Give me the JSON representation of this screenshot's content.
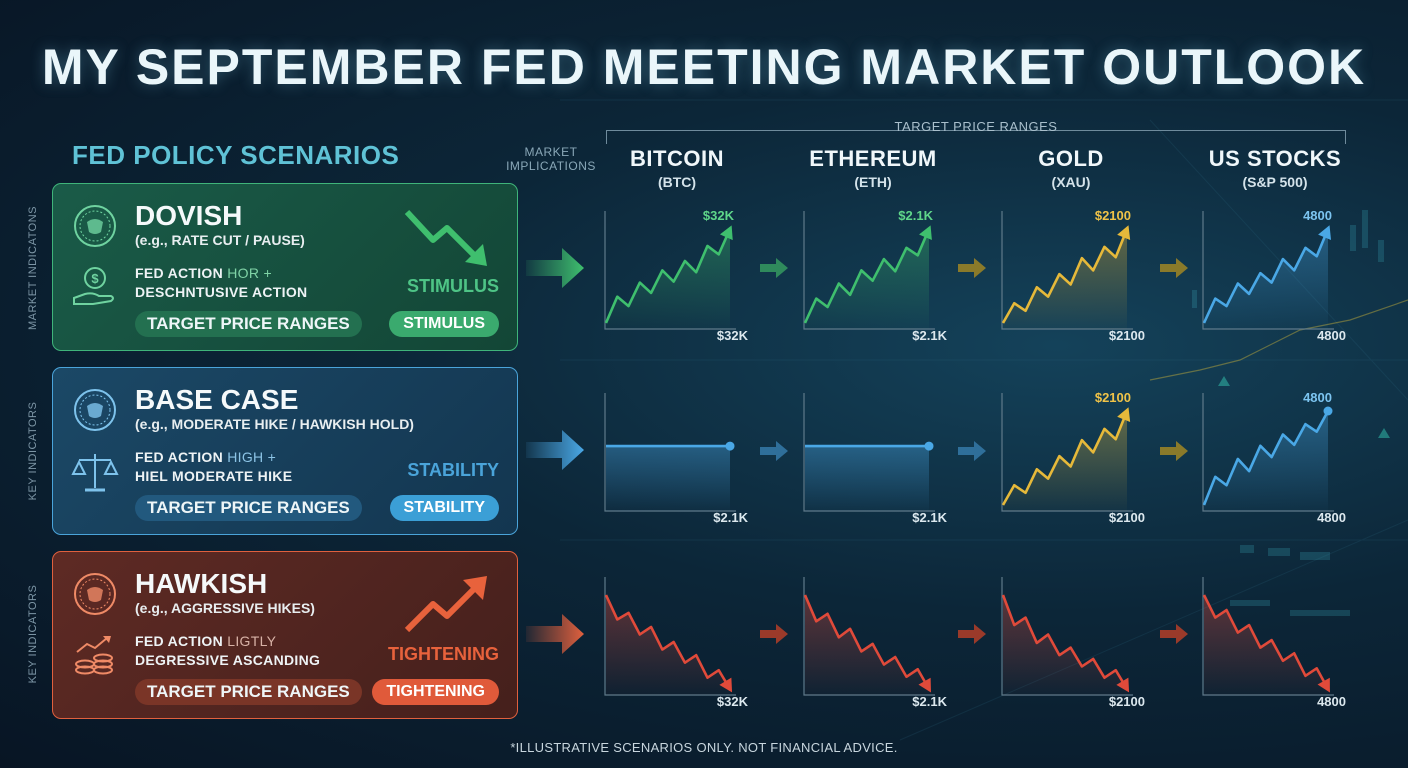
{
  "title": "MY SEPTEMBER FED MEETING MARKET OUTLOOK",
  "left_heading": "FED POLICY SCENARIOS",
  "market_implications": "MARKET IMPLICATIONS",
  "target_price_ranges_header": "TARGET PRICE RANGES",
  "assets": [
    {
      "name": "BITCOIN",
      "ticker": "(BTC)"
    },
    {
      "name": "ETHEREUM",
      "ticker": "(ETH)"
    },
    {
      "name": "GOLD",
      "ticker": "(XAU)"
    },
    {
      "name": "US STOCKS",
      "ticker": "(S&P 500)"
    }
  ],
  "side_labels": [
    "MARKET INDICATONS",
    "KEY INDICATORS",
    "KEY INDICATORS"
  ],
  "scenarios": [
    {
      "title": "DOVISH",
      "subtitle": "(e.g., RATE CUT / PAUSE)",
      "action_line1_bold": "FED ACTION",
      "action_line1_dim": "HOR +",
      "action_line2": "DESCHNTUSIVE ACTION",
      "pill": "TARGET PRICE RANGES",
      "mood": "STIMULUS",
      "badge": "STIMULUS",
      "color": "#3fb47a",
      "icons": [
        "fed-seal-icon",
        "hand-dollar-coin-icon",
        "trend-down-arrow-icon"
      ]
    },
    {
      "title": "BASE CASE",
      "subtitle": "(e.g., MODERATE HIKE / HAWKISH HOLD)",
      "action_line1_bold": "FED ACTION",
      "action_line1_dim": "HIGH +",
      "action_line2": "HIEL MODERATE HIKE",
      "pill": "TARGET PRICE RANGES",
      "mood": "STABILITY",
      "badge": "STABILITY",
      "color": "#4aa4da",
      "icons": [
        "fed-seal-icon",
        "balance-scale-icon",
        "flat-line-icon"
      ]
    },
    {
      "title": "HAWKISH",
      "subtitle": "(e.g., AGGRESSIVE HIKES)",
      "action_line1_bold": "FED ACTION",
      "action_line1_dim": "LIGTLY",
      "action_line2": "DEGRESSIVE ASCANDING",
      "pill": "TARGET PRICE RANGES",
      "mood": "TIGHTENING",
      "badge": "TIGHTENING",
      "color": "#e0603e",
      "icons": [
        "fed-seal-icon",
        "coin-stack-growth-icon",
        "trend-up-arrow-icon"
      ]
    }
  ],
  "chart_data": [
    {
      "type": "line",
      "title": "BITCOIN dovish",
      "trend": "up",
      "color": "#3fbf6e",
      "top_label": "$32K",
      "bottom_label": "$32K",
      "values": [
        0,
        2.8,
        1.8,
        4.3,
        3.2,
        5.6,
        4.4,
        6.6,
        5.4,
        8.2,
        7.3,
        10
      ]
    },
    {
      "type": "line",
      "title": "ETHEREUM dovish",
      "trend": "up",
      "color": "#3fbf6e",
      "top_label": "$2.1K",
      "bottom_label": "$2.1K",
      "values": [
        0,
        2.6,
        1.7,
        4.2,
        3.0,
        5.6,
        4.5,
        6.8,
        5.5,
        8.0,
        7.2,
        10
      ]
    },
    {
      "type": "line",
      "title": "GOLD dovish",
      "trend": "up",
      "color": "#e6b93a",
      "top_label": "$2100",
      "bottom_label": "$2100",
      "values": [
        0,
        2.1,
        1.3,
        3.8,
        2.8,
        5.2,
        4.1,
        6.9,
        5.6,
        8.1,
        7.0,
        10
      ]
    },
    {
      "type": "line",
      "title": "US STOCKS dovish",
      "trend": "up",
      "color": "#4aa8e6",
      "top_label": "4800",
      "bottom_label": "4800",
      "values": [
        0,
        2.6,
        1.8,
        4.2,
        3.1,
        5.3,
        4.3,
        6.8,
        5.6,
        8.0,
        7.1,
        10
      ]
    },
    {
      "type": "line",
      "title": "BITCOIN base",
      "trend": "flat",
      "color": "#4aa8e6",
      "top_label": "",
      "bottom_label": "$2.1K",
      "values": [
        5,
        5
      ]
    },
    {
      "type": "line",
      "title": "ETHEREUM base",
      "trend": "flat",
      "color": "#4aa8e6",
      "top_label": "",
      "bottom_label": "$2.1K",
      "values": [
        5,
        5
      ]
    },
    {
      "type": "line",
      "title": "GOLD base",
      "trend": "up",
      "color": "#e6b93a",
      "top_label": "$2100",
      "bottom_label": "$2100",
      "values": [
        0,
        2.1,
        1.3,
        3.8,
        2.8,
        5.2,
        4.1,
        6.9,
        5.6,
        8.1,
        7.0,
        10
      ]
    },
    {
      "type": "line",
      "title": "US STOCKS base",
      "trend": "up",
      "color": "#4aa8e6",
      "top_label": "4800",
      "bottom_label": "4800",
      "values": [
        0,
        3.0,
        2.1,
        4.9,
        3.6,
        6.3,
        5.1,
        7.5,
        6.4,
        8.6,
        7.8,
        10
      ]
    },
    {
      "type": "line",
      "title": "BITCOIN hawkish",
      "trend": "down",
      "color": "#e04a3a",
      "top_label": "",
      "bottom_label": "$32K",
      "values": [
        10,
        7.4,
        8.1,
        5.8,
        6.6,
        4.2,
        5.0,
        2.8,
        3.6,
        1.2,
        2.0,
        0
      ]
    },
    {
      "type": "line",
      "title": "ETHEREUM hawkish",
      "trend": "down",
      "color": "#e04a3a",
      "top_label": "",
      "bottom_label": "$2.1K",
      "values": [
        10,
        7.2,
        8.0,
        5.5,
        6.4,
        4.0,
        4.8,
        2.6,
        3.4,
        1.3,
        2.1,
        0
      ]
    },
    {
      "type": "line",
      "title": "GOLD hawkish",
      "trend": "down",
      "color": "#e04a3a",
      "top_label": "",
      "bottom_label": "$2100",
      "values": [
        10,
        6.8,
        7.6,
        4.9,
        5.8,
        3.6,
        4.4,
        2.4,
        3.2,
        1.2,
        2.0,
        0
      ]
    },
    {
      "type": "line",
      "title": "US STOCKS hawkish",
      "trend": "down",
      "color": "#e04a3a",
      "top_label": "",
      "bottom_label": "4800",
      "values": [
        10,
        7.6,
        8.4,
        6.0,
        6.8,
        4.4,
        5.2,
        3.0,
        3.8,
        1.4,
        2.2,
        0
      ]
    }
  ],
  "footnote": "*ILLUSTRATIVE SCENARIOS ONLY. NOT FINANCIAL ADVICE."
}
